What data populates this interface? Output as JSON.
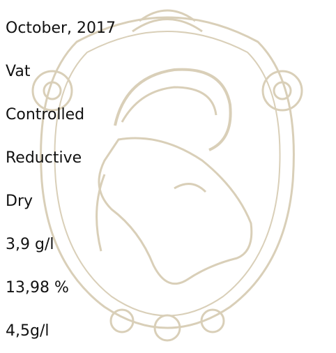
{
  "items": [
    "October, 2017",
    "Vat",
    "Controlled",
    "Reductive",
    "Dry",
    "3,9 g/l",
    "13,98 %",
    "4,5g/l"
  ]
}
